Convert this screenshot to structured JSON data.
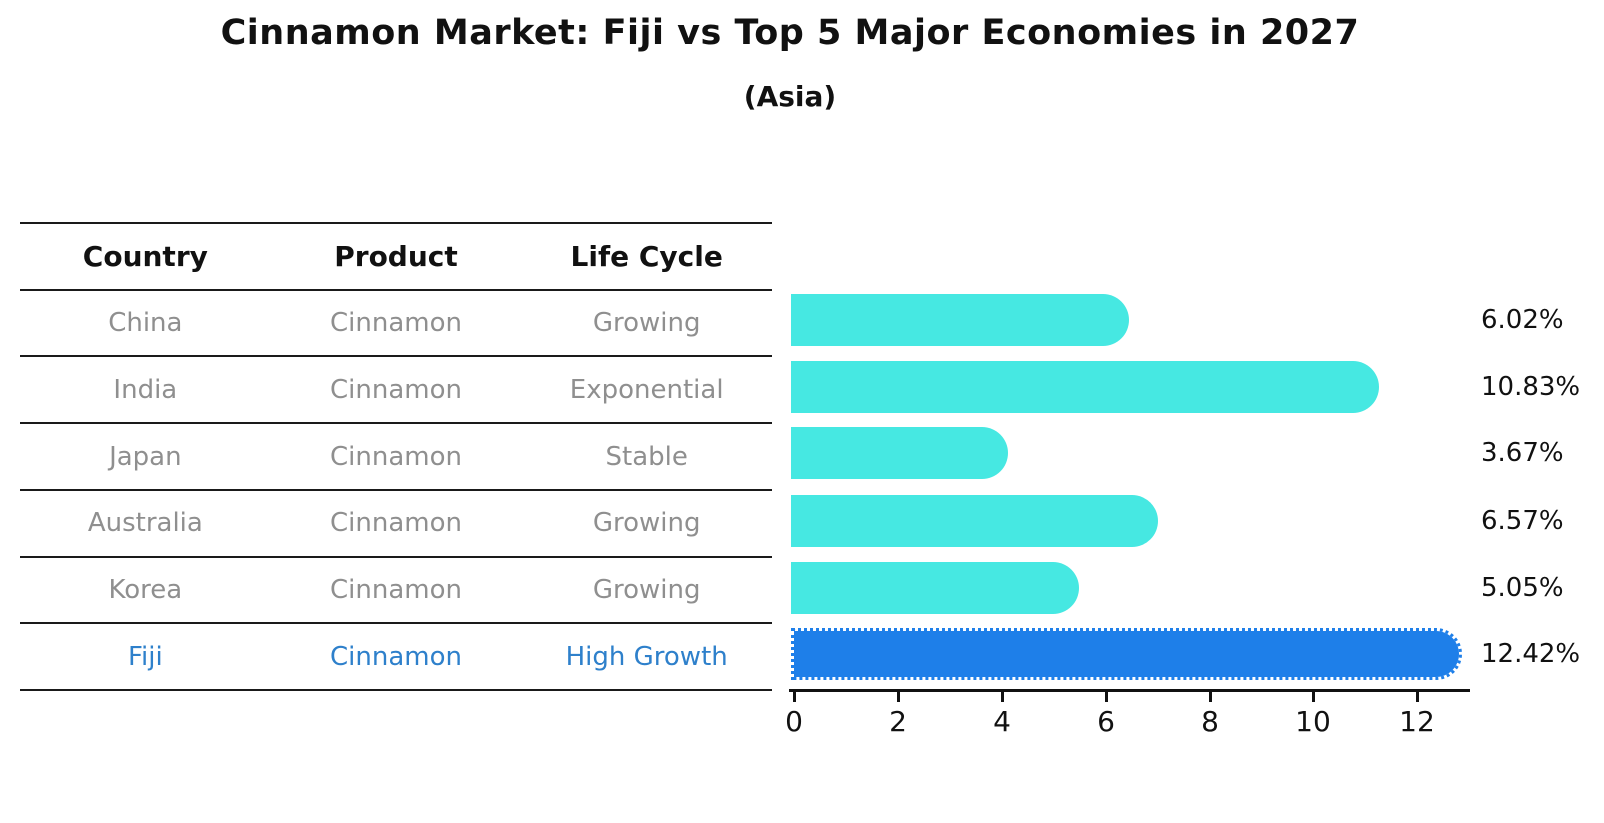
{
  "chart_data": {
    "type": "bar",
    "orientation": "horizontal",
    "title": "Cinnamon Market: Fiji vs Top 5 Major Economies in 2027",
    "subtitle": "(Asia)",
    "categories": [
      "China",
      "India",
      "Japan",
      "Australia",
      "Korea",
      "Fiji"
    ],
    "values": [
      6.02,
      10.83,
      3.67,
      6.57,
      5.05,
      12.42
    ],
    "value_labels": [
      "6.02%",
      "10.83%",
      "3.67%",
      "6.57%",
      "5.05%",
      "12.42%"
    ],
    "x_ticks": [
      0,
      2,
      4,
      6,
      8,
      10,
      12
    ],
    "x_tick_labels": [
      "0",
      "2",
      "4",
      "6",
      "8",
      "10",
      "12"
    ],
    "xlim": [
      0,
      13.1
    ],
    "grid": false,
    "legend": false,
    "highlight_index": 5,
    "bar_color": "#46e8e2",
    "highlight_bar_color": "#1e7fe9"
  },
  "table": {
    "headers": [
      "Country",
      "Product",
      "Life Cycle"
    ],
    "rows": [
      {
        "country": "China",
        "product": "Cinnamon",
        "life_cycle": "Growing"
      },
      {
        "country": "India",
        "product": "Cinnamon",
        "life_cycle": "Exponential"
      },
      {
        "country": "Japan",
        "product": "Cinnamon",
        "life_cycle": "Stable"
      },
      {
        "country": "Australia",
        "product": "Cinnamon",
        "life_cycle": "Growing"
      },
      {
        "country": "Korea",
        "product": "Cinnamon",
        "life_cycle": "Growing"
      },
      {
        "country": "Fiji",
        "product": "Cinnamon",
        "life_cycle": "High Growth"
      }
    ]
  },
  "colors": {
    "text_default": "#111111",
    "text_muted": "#8f8f8f",
    "text_highlight": "#2e80cb",
    "bar": "#46e8e2",
    "bar_highlight": "#1e7fe9"
  }
}
